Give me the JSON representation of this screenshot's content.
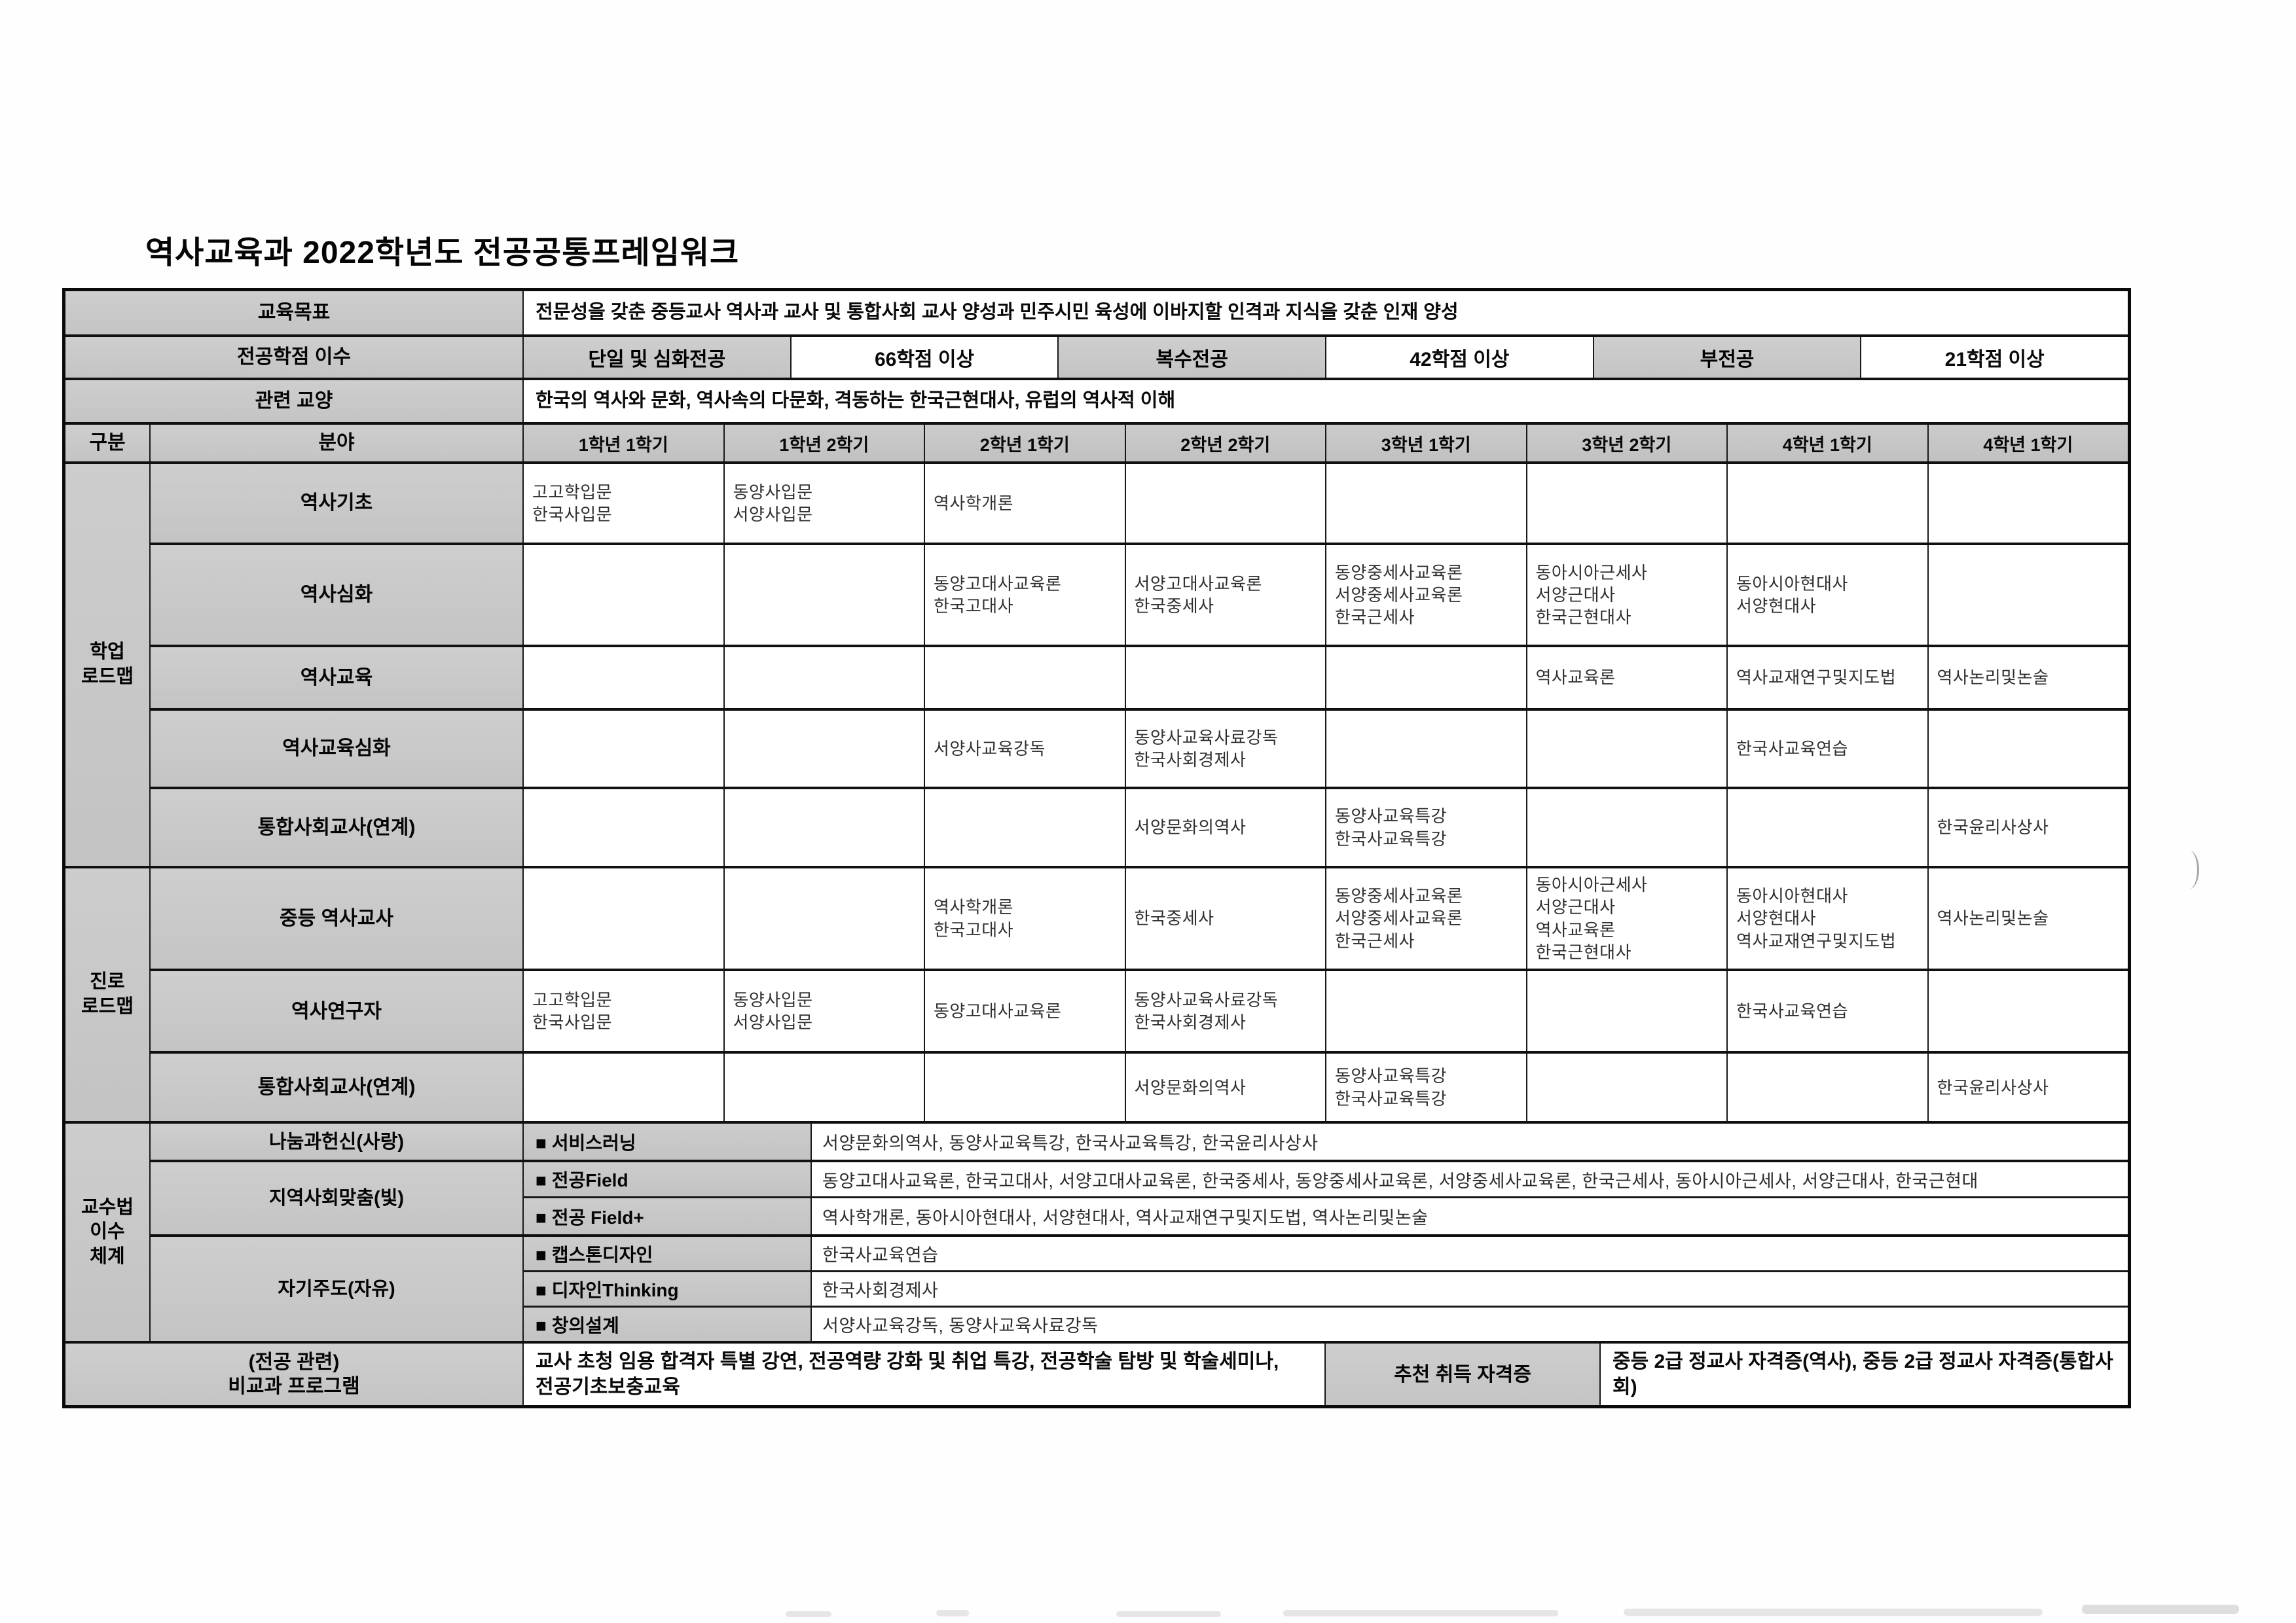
{
  "page": {
    "title": "역사교육과 2022학년도 전공공통프레임워크"
  },
  "top": {
    "goal_label": "교육목표",
    "goal_text": "전문성을 갖춘 중등교사 역사과 교사 및 통합사회 교사 양성과 민주시민 육성에 이바지할 인격과 지식을 갖춘 인재 양성",
    "credits_label": "전공학점 이수",
    "credits": [
      {
        "name": "단일 및 심화전공",
        "value": "66학점 이상"
      },
      {
        "name": "복수전공",
        "value": "42학점 이상"
      },
      {
        "name": "부전공",
        "value": "21학점 이상"
      }
    ],
    "liberal_label": "관련 교양",
    "liberal_text": "한국의 역사와 문화, 역사속의 다문화, 격동하는 한국근현대사, 유럽의 역사적 이해"
  },
  "header": {
    "col1": "구분",
    "col2": "분야",
    "semesters": [
      "1학년 1학기",
      "1학년 2학기",
      "2학년 1학기",
      "2학년 2학기",
      "3학년 1학기",
      "3학년 2학기",
      "4학년 1학기",
      "4학년 1학기"
    ]
  },
  "roadmap": {
    "groups": [
      {
        "name": "학업\n로드맵",
        "rows": [
          {
            "label": "역사기초",
            "cells": [
              "고고학입문\n한국사입문",
              "동양사입문\n서양사입문",
              "역사학개론",
              "",
              "",
              "",
              "",
              ""
            ]
          },
          {
            "label": "역사심화",
            "cells": [
              "",
              "",
              "동양고대사교육론\n한국고대사",
              "서양고대사교육론\n한국중세사",
              "동양중세사교육론\n서양중세사교육론\n한국근세사",
              "동아시아근세사\n서양근대사\n한국근현대사",
              "동아시아현대사\n서양현대사",
              ""
            ]
          },
          {
            "label": "역사교육",
            "cells": [
              "",
              "",
              "",
              "",
              "",
              "역사교육론",
              "역사교재연구및지도법",
              "역사논리및논술"
            ]
          },
          {
            "label": "역사교육심화",
            "cells": [
              "",
              "",
              "서양사교육강독",
              "동양사교육사료강독\n한국사회경제사",
              "",
              "",
              "한국사교육연습",
              ""
            ]
          },
          {
            "label": "통합사회교사(연계)",
            "cells": [
              "",
              "",
              "",
              "서양문화의역사",
              "동양사교육특강\n한국사교육특강",
              "",
              "",
              "한국윤리사상사"
            ]
          }
        ]
      },
      {
        "name": "진로\n로드맵",
        "rows": [
          {
            "label": "중등 역사교사",
            "cells": [
              "",
              "",
              "역사학개론\n한국고대사",
              "한국중세사",
              "동양중세사교육론\n서양중세사교육론\n한국근세사",
              "동아시아근세사\n서양근대사\n역사교육론\n한국근현대사",
              "동아시아현대사\n서양현대사\n역사교재연구및지도법",
              "역사논리및논술"
            ]
          },
          {
            "label": "역사연구자",
            "cells": [
              "고고학입문\n한국사입문",
              "동양사입문\n서양사입문",
              "동양고대사교육론",
              "동양사교육사료강독\n한국사회경제사",
              "",
              "",
              "한국사교육연습",
              ""
            ]
          },
          {
            "label": "통합사회교사(연계)",
            "cells": [
              "",
              "",
              "",
              "서양문화의역사",
              "동양사교육특강\n한국사교육특강",
              "",
              "",
              "한국윤리사상사"
            ]
          }
        ]
      }
    ]
  },
  "pedagogy": {
    "name": "교수법\n이수\n체계",
    "sections": [
      {
        "label": "나눔과헌신(사랑)",
        "programs": [
          {
            "name": "■ 서비스러닝",
            "courses": "서양문화의역사, 동양사교육특강, 한국사교육특강, 한국윤리사상사"
          }
        ]
      },
      {
        "label": "지역사회맞춤(빛)",
        "programs": [
          {
            "name": "■ 전공Field",
            "courses": "동양고대사교육론, 한국고대사, 서양고대사교육론, 한국중세사, 동양중세사교육론, 서양중세사교육론, 한국근세사, 동아시아근세사, 서양근대사, 한국근현대"
          },
          {
            "name": "■ 전공 Field+",
            "courses": "역사학개론, 동아시아현대사, 서양현대사, 역사교재연구및지도법, 역사논리및논술"
          }
        ]
      },
      {
        "label": "자기주도(자유)",
        "programs": [
          {
            "name": "■ 캡스톤디자인",
            "courses": "한국사교육연습"
          },
          {
            "name": "■ 디자인Thinking",
            "courses": "한국사회경제사"
          },
          {
            "name": "■ 창의설계",
            "courses": "서양사교육강독, 동양사교육사료강독"
          }
        ]
      }
    ]
  },
  "bottom": {
    "label": "(전공 관련)\n비교과 프로그램",
    "programs_text": "교사 초청 임용 합격자 특별 강연, 전공역량 강화 및 취업 특강, 전공학술 탐방 및 학술세미나,\n전공기초보충교육",
    "cert_label": "추천 취득 자격증",
    "cert_text": "중등 2급 정교사 자격증(역사), 중등 2급 정교사 자격증(통합사\n회)"
  }
}
